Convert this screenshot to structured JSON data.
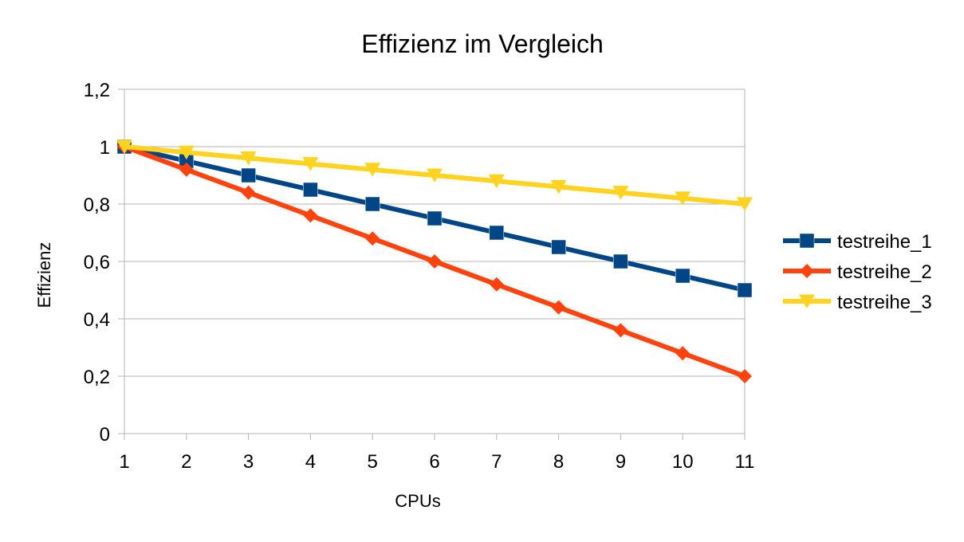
{
  "chart_data": {
    "type": "line",
    "title": "Effizienz im Vergleich",
    "xlabel": "CPUs",
    "ylabel": "Effizienz",
    "categories": [
      "1",
      "2",
      "3",
      "4",
      "5",
      "6",
      "7",
      "8",
      "9",
      "10",
      "11"
    ],
    "ylim": [
      0,
      1.2
    ],
    "yticks": [
      0,
      0.2,
      0.4,
      0.6,
      0.8,
      1,
      1.2
    ],
    "ytick_labels": [
      "0",
      "0,2",
      "0,4",
      "0,6",
      "0,8",
      "1",
      "1,2"
    ],
    "grid": true,
    "legend_position": "right",
    "series": [
      {
        "name": "testreihe_1",
        "color": "#004586",
        "marker": "square",
        "values": [
          1,
          0.95,
          0.9,
          0.85,
          0.8,
          0.75,
          0.7,
          0.65,
          0.6,
          0.55,
          0.5
        ]
      },
      {
        "name": "testreihe_2",
        "color": "#ff420e",
        "marker": "diamond",
        "values": [
          1,
          0.92,
          0.84,
          0.76,
          0.68,
          0.6,
          0.52,
          0.44,
          0.36,
          0.28,
          0.2
        ]
      },
      {
        "name": "testreihe_3",
        "color": "#ffd320",
        "marker": "triangle-down",
        "values": [
          1,
          0.98,
          0.96,
          0.94,
          0.92,
          0.9,
          0.88,
          0.86,
          0.84,
          0.82,
          0.8
        ]
      }
    ]
  }
}
